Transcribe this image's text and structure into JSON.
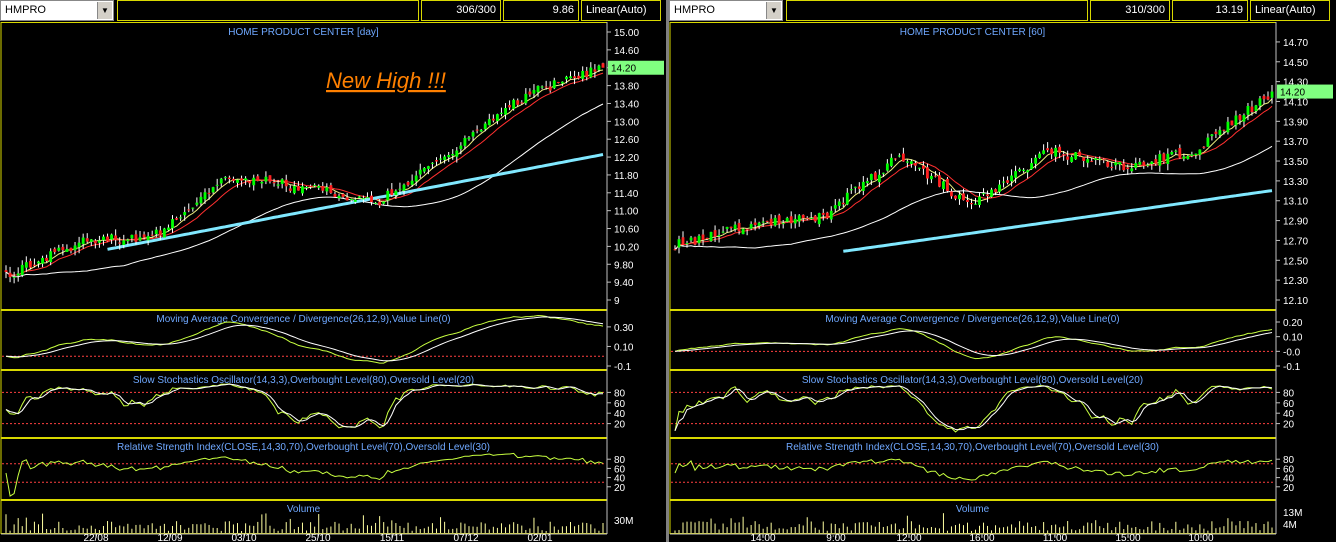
{
  "colors": {
    "background": "#000000",
    "panel_border": "#d8d800",
    "title": "#6fa8ff",
    "up_candle": "#00ff00",
    "down_candle": "#ff2020",
    "ma_fast": "#ffffff",
    "ma_mid": "#ff3030",
    "ma_slow": "#ffffff",
    "ma_long": "#80e8ff",
    "indicator_line": "#c8ff40",
    "signal_line": "#ffffff",
    "level_line": "#ff4040",
    "price_tag": "#80ff80",
    "annotation": "#ff8000"
  },
  "panels": [
    {
      "symbol": "HMPRO",
      "counter": "306/300",
      "value": "9.86",
      "scale_mode": "Linear(Auto)",
      "price_title": "HOME PRODUCT CENTER [day]",
      "annotation": "New High !!!",
      "price_tag": "14.20",
      "macd_title": "Moving Average Convergence / Divergence(26,12,9),Value Line(0)",
      "stoch_title": "Slow Stochastics Oscillator(14,3,3),Overbought Level(80),Oversold Level(20)",
      "rsi_title": "Relative Strength Index(CLOSE,14,30,70),Overbought Level(70),Oversold Level(30)",
      "volume_title": "Volume",
      "price_ticks": [
        "15.00",
        "14.60",
        "14.20",
        "13.80",
        "13.40",
        "13.00",
        "12.60",
        "12.20",
        "11.80",
        "11.40",
        "11.00",
        "10.60",
        "10.20",
        "9.80",
        "9.40",
        "9"
      ],
      "macd_ticks": [
        "0.30",
        "0.10",
        "-0.1"
      ],
      "stoch_ticks": [
        "80",
        "60",
        "40",
        "20"
      ],
      "rsi_ticks": [
        "80",
        "60",
        "40",
        "20"
      ],
      "volume_ticks": [
        "30M"
      ],
      "x_ticks": [
        "22/08",
        "12/09",
        "03/10",
        "25/10",
        "15/11",
        "07/12",
        "02/01"
      ]
    },
    {
      "symbol": "HMPRO",
      "counter": "310/300",
      "value": "13.19",
      "scale_mode": "Linear(Auto)",
      "price_title": "HOME PRODUCT CENTER [60]",
      "annotation": "",
      "price_tag": "14.20",
      "macd_title": "Moving Average Convergence / Divergence(26,12,9),Value Line(0)",
      "stoch_title": "Slow Stochastics Oscillator(14,3,3),Overbought Level(80),Oversold Level(20)",
      "rsi_title": "Relative Strength Index(CLOSE,14,30,70),Overbought Level(70),Oversold Level(30)",
      "volume_title": "Volume",
      "price_ticks": [
        "14.70",
        "14.50",
        "14.30",
        "14.10",
        "13.90",
        "13.70",
        "13.50",
        "13.30",
        "13.10",
        "12.90",
        "12.70",
        "12.50",
        "12.30",
        "12.10"
      ],
      "macd_ticks": [
        "0.20",
        "0.10",
        "-0.0",
        "-0.1"
      ],
      "stoch_ticks": [
        "80",
        "60",
        "40",
        "20"
      ],
      "rsi_ticks": [
        "80",
        "60",
        "40",
        "20"
      ],
      "volume_ticks": [
        "13M",
        "4M"
      ],
      "x_ticks": [
        "14:00",
        "9:00",
        "12:00",
        "16:00",
        "11:00",
        "15:00",
        "10:00"
      ]
    }
  ],
  "chart_data": [
    {
      "type": "candlestick",
      "title": "HOME PRODUCT CENTER [day]",
      "ylim": [
        9.0,
        15.0
      ],
      "key_points": [
        {
          "x": "start",
          "close": 9.55
        },
        {
          "x": "22/08",
          "close": 10.3
        },
        {
          "x": "12/09",
          "close": 10.45
        },
        {
          "x": "03/10",
          "close": 11.8
        },
        {
          "x": "25/10",
          "close": 11.5
        },
        {
          "x": "15/11",
          "close": 11.2
        },
        {
          "x": "07/12",
          "close": 12.4
        },
        {
          "x": "02/01",
          "close": 13.6
        },
        {
          "x": "end",
          "close": 14.2
        }
      ],
      "indicators": {
        "macd_range": [
          -0.1,
          0.35
        ],
        "stoch_levels": [
          20,
          80
        ],
        "rsi_levels": [
          30,
          70
        ]
      }
    },
    {
      "type": "candlestick",
      "title": "HOME PRODUCT CENTER [60]",
      "ylim": [
        12.1,
        14.8
      ],
      "key_points": [
        {
          "x": "start",
          "close": 12.65
        },
        {
          "x": "14:00",
          "close": 12.85
        },
        {
          "x": "9:00",
          "close": 12.95
        },
        {
          "x": "12:00",
          "close": 13.55
        },
        {
          "x": "16:00",
          "close": 13.05
        },
        {
          "x": "11:00",
          "close": 13.6
        },
        {
          "x": "15:00",
          "close": 13.45
        },
        {
          "x": "10:00",
          "close": 13.6
        },
        {
          "x": "end",
          "close": 14.2
        }
      ],
      "indicators": {
        "macd_range": [
          -0.1,
          0.2
        ],
        "stoch_levels": [
          20,
          80
        ],
        "rsi_levels": [
          30,
          70
        ]
      }
    }
  ]
}
